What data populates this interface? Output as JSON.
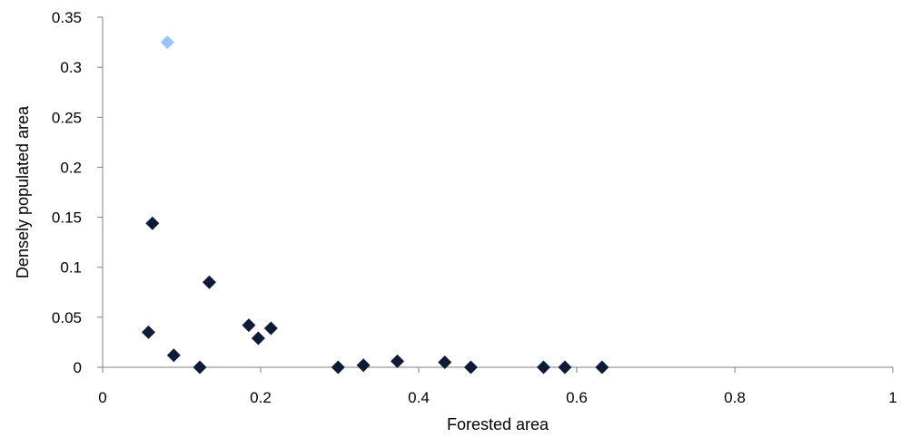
{
  "chart_data": {
    "type": "scatter",
    "title": "",
    "xlabel": "Forested area",
    "ylabel": "Densely populated area",
    "xlim": [
      0,
      1
    ],
    "ylim": [
      0,
      0.35
    ],
    "x_ticks": [
      "0",
      "0.2",
      "0.4",
      "0.6",
      "0.8",
      "1"
    ],
    "y_ticks": [
      "0",
      "0.05",
      "0.1",
      "0.15",
      "0.2",
      "0.25",
      "0.3",
      "0.35"
    ],
    "grid": false,
    "legend": "none",
    "marker": "diamond",
    "colors": {
      "points": "#0d1b36",
      "highlight": "#99c4f5",
      "axis": "#808080"
    },
    "series": [
      {
        "points": [
          {
            "x": 0.058,
            "y": 0.035
          },
          {
            "x": 0.063,
            "y": 0.144
          },
          {
            "x": 0.09,
            "y": 0.012
          },
          {
            "x": 0.123,
            "y": 0.0
          },
          {
            "x": 0.135,
            "y": 0.085
          },
          {
            "x": 0.185,
            "y": 0.042
          },
          {
            "x": 0.197,
            "y": 0.029
          },
          {
            "x": 0.213,
            "y": 0.039
          },
          {
            "x": 0.298,
            "y": 0.0
          },
          {
            "x": 0.33,
            "y": 0.002
          },
          {
            "x": 0.373,
            "y": 0.006
          },
          {
            "x": 0.433,
            "y": 0.005
          },
          {
            "x": 0.466,
            "y": 0.0
          },
          {
            "x": 0.558,
            "y": 0.0
          },
          {
            "x": 0.585,
            "y": 0.0
          },
          {
            "x": 0.632,
            "y": 0.0
          }
        ]
      },
      {
        "highlight": true,
        "points": [
          {
            "x": 0.082,
            "y": 0.325
          }
        ]
      }
    ]
  }
}
